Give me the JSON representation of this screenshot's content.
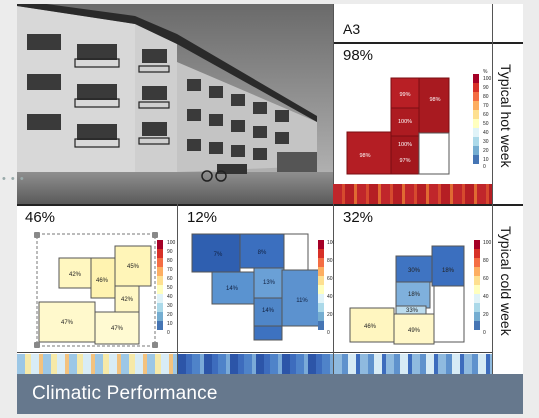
{
  "footer": {
    "title": "Climatic Performance"
  },
  "figure": {
    "header_label": "A3",
    "hot_week_label": "Typical hot week",
    "cold_week_label": "Typical cold week",
    "hot_plan": {
      "percent": "98%",
      "rooms": [
        "99%",
        "98%",
        "100%",
        "100%",
        "98%",
        "97%"
      ]
    },
    "cold_plans": [
      {
        "percent": "46%",
        "rooms": [
          "42%",
          "46%",
          "45%",
          "42%",
          "47%",
          "47%"
        ]
      },
      {
        "percent": "12%",
        "rooms": [
          "7%",
          "8%",
          "13%",
          "14%",
          "14%",
          "11%"
        ]
      },
      {
        "percent": "32%",
        "rooms": [
          "30%",
          "18%",
          "18%",
          "33%",
          "46%",
          "49%"
        ]
      }
    ],
    "scale_labels": [
      "%",
      "100",
      "90",
      "80",
      "70",
      "60",
      "50",
      "40",
      "30",
      "20",
      "10",
      "0"
    ]
  },
  "colors": {
    "footer_bg": "#66788d",
    "hot": "#b01c22",
    "cold_blue": "#3b6fbf",
    "mild": "#fff2b8"
  },
  "icons": [
    "photo-building"
  ]
}
